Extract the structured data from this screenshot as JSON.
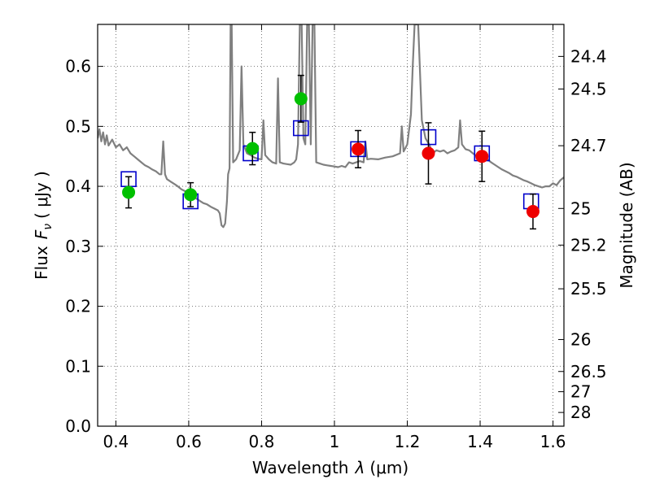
{
  "chart_data": {
    "type": "scatter",
    "xlabel_text": "Wavelength",
    "xlabel_symbol": "λ",
    "xlabel_unit": "(μm)",
    "ylabel_text": "Flux",
    "ylabel_symbol": "F",
    "ylabel_subscript": "ν",
    "ylabel_unit": "( μJy )",
    "y2label": "Magnitude (AB)",
    "xlim": [
      0.35,
      1.63
    ],
    "ylim": [
      0.0,
      0.67
    ],
    "grid": true,
    "x_ticks": [
      0.4,
      0.6,
      0.8,
      1.0,
      1.2,
      1.4,
      1.6
    ],
    "x_tick_labels": [
      "0.4",
      "0.6",
      "0.8",
      "1",
      "1.2",
      "1.4",
      "1.6"
    ],
    "y_ticks": [
      0.0,
      0.1,
      0.2,
      0.3,
      0.4,
      0.5,
      0.6
    ],
    "y_tick_labels": [
      "0.0",
      "0.1",
      "0.2",
      "0.3",
      "0.4",
      "0.5",
      "0.6"
    ],
    "mag_ticks": [
      {
        "label": "24.4",
        "flux": 0.6166
      },
      {
        "label": "24.5",
        "flux": 0.5623
      },
      {
        "label": "24.7",
        "flux": 0.4677
      },
      {
        "label": "25",
        "flux": 0.3631
      },
      {
        "label": "25.2",
        "flux": 0.302
      },
      {
        "label": "25.5",
        "flux": 0.2291
      },
      {
        "label": "26",
        "flux": 0.1445
      },
      {
        "label": "26.5",
        "flux": 0.0912
      },
      {
        "label": "27",
        "flux": 0.0575
      },
      {
        "label": "28",
        "flux": 0.0229
      }
    ],
    "series": [
      {
        "marker": "open-square",
        "color": "#0000cc",
        "points": [
          {
            "x": 0.435,
            "y": 0.412
          },
          {
            "x": 0.605,
            "y": 0.375
          },
          {
            "x": 0.77,
            "y": 0.455
          },
          {
            "x": 0.908,
            "y": 0.497
          },
          {
            "x": 1.065,
            "y": 0.462
          },
          {
            "x": 1.258,
            "y": 0.482
          },
          {
            "x": 1.405,
            "y": 0.455
          },
          {
            "x": 1.54,
            "y": 0.375
          }
        ]
      },
      {
        "marker": "filled-circle",
        "color": "#00c000",
        "points": [
          {
            "x": 0.435,
            "y": 0.39,
            "err": 0.026
          },
          {
            "x": 0.605,
            "y": 0.386,
            "err": 0.02
          },
          {
            "x": 0.775,
            "y": 0.463,
            "err": 0.027
          },
          {
            "x": 0.908,
            "y": 0.546,
            "err": 0.039
          }
        ]
      },
      {
        "marker": "filled-circle",
        "color": "#ee0000",
        "points": [
          {
            "x": 1.065,
            "y": 0.462,
            "err": 0.031
          },
          {
            "x": 1.258,
            "y": 0.455,
            "err": 0.051
          },
          {
            "x": 1.405,
            "y": 0.45,
            "err": 0.042
          },
          {
            "x": 1.545,
            "y": 0.358,
            "err": 0.029
          }
        ]
      }
    ],
    "model_spectrum": {
      "color": "#808080",
      "points": [
        [
          0.35,
          0.48
        ],
        [
          0.355,
          0.495
        ],
        [
          0.36,
          0.475
        ],
        [
          0.365,
          0.49
        ],
        [
          0.37,
          0.47
        ],
        [
          0.375,
          0.485
        ],
        [
          0.38,
          0.468
        ],
        [
          0.39,
          0.478
        ],
        [
          0.4,
          0.465
        ],
        [
          0.41,
          0.47
        ],
        [
          0.42,
          0.46
        ],
        [
          0.43,
          0.465
        ],
        [
          0.44,
          0.455
        ],
        [
          0.45,
          0.45
        ],
        [
          0.46,
          0.445
        ],
        [
          0.47,
          0.44
        ],
        [
          0.48,
          0.435
        ],
        [
          0.49,
          0.432
        ],
        [
          0.5,
          0.428
        ],
        [
          0.51,
          0.425
        ],
        [
          0.52,
          0.42
        ],
        [
          0.525,
          0.42
        ],
        [
          0.53,
          0.475
        ],
        [
          0.535,
          0.42
        ],
        [
          0.54,
          0.412
        ],
        [
          0.55,
          0.408
        ],
        [
          0.56,
          0.404
        ],
        [
          0.57,
          0.4
        ],
        [
          0.58,
          0.395
        ],
        [
          0.59,
          0.392
        ],
        [
          0.6,
          0.388
        ],
        [
          0.61,
          0.385
        ],
        [
          0.62,
          0.38
        ],
        [
          0.63,
          0.376
        ],
        [
          0.64,
          0.372
        ],
        [
          0.65,
          0.37
        ],
        [
          0.66,
          0.366
        ],
        [
          0.67,
          0.363
        ],
        [
          0.68,
          0.36
        ],
        [
          0.685,
          0.355
        ],
        [
          0.69,
          0.335
        ],
        [
          0.695,
          0.332
        ],
        [
          0.7,
          0.338
        ],
        [
          0.705,
          0.375
        ],
        [
          0.708,
          0.42
        ],
        [
          0.712,
          0.43
        ],
        [
          0.715,
          0.67
        ],
        [
          0.718,
          0.67
        ],
        [
          0.722,
          0.44
        ],
        [
          0.73,
          0.445
        ],
        [
          0.74,
          0.46
        ],
        [
          0.745,
          0.6
        ],
        [
          0.75,
          0.47
        ],
        [
          0.76,
          0.455
        ],
        [
          0.77,
          0.452
        ],
        [
          0.78,
          0.448
        ],
        [
          0.79,
          0.446
        ],
        [
          0.8,
          0.445
        ],
        [
          0.805,
          0.51
        ],
        [
          0.81,
          0.452
        ],
        [
          0.82,
          0.445
        ],
        [
          0.83,
          0.44
        ],
        [
          0.84,
          0.438
        ],
        [
          0.845,
          0.58
        ],
        [
          0.85,
          0.44
        ],
        [
          0.86,
          0.438
        ],
        [
          0.87,
          0.437
        ],
        [
          0.88,
          0.436
        ],
        [
          0.89,
          0.44
        ],
        [
          0.895,
          0.445
        ],
        [
          0.9,
          0.47
        ],
        [
          0.905,
          0.67
        ],
        [
          0.91,
          0.67
        ],
        [
          0.915,
          0.48
        ],
        [
          0.92,
          0.47
        ],
        [
          0.925,
          0.67
        ],
        [
          0.93,
          0.67
        ],
        [
          0.935,
          0.47
        ],
        [
          0.94,
          0.67
        ],
        [
          0.945,
          0.67
        ],
        [
          0.95,
          0.44
        ],
        [
          0.96,
          0.438
        ],
        [
          0.97,
          0.436
        ],
        [
          0.98,
          0.435
        ],
        [
          0.99,
          0.434
        ],
        [
          1.0,
          0.433
        ],
        [
          1.01,
          0.432
        ],
        [
          1.02,
          0.434
        ],
        [
          1.03,
          0.432
        ],
        [
          1.04,
          0.44
        ],
        [
          1.05,
          0.438
        ],
        [
          1.06,
          0.44
        ],
        [
          1.07,
          0.442
        ],
        [
          1.08,
          0.44
        ],
        [
          1.085,
          0.475
        ],
        [
          1.09,
          0.445
        ],
        [
          1.1,
          0.446
        ],
        [
          1.12,
          0.445
        ],
        [
          1.14,
          0.448
        ],
        [
          1.16,
          0.45
        ],
        [
          1.18,
          0.455
        ],
        [
          1.185,
          0.5
        ],
        [
          1.19,
          0.458
        ],
        [
          1.2,
          0.47
        ],
        [
          1.21,
          0.52
        ],
        [
          1.215,
          0.6
        ],
        [
          1.22,
          0.67
        ],
        [
          1.23,
          0.67
        ],
        [
          1.24,
          0.51
        ],
        [
          1.25,
          0.48
        ],
        [
          1.26,
          0.47
        ],
        [
          1.27,
          0.455
        ],
        [
          1.28,
          0.46
        ],
        [
          1.29,
          0.458
        ],
        [
          1.3,
          0.46
        ],
        [
          1.31,
          0.455
        ],
        [
          1.32,
          0.458
        ],
        [
          1.33,
          0.46
        ],
        [
          1.34,
          0.465
        ],
        [
          1.345,
          0.51
        ],
        [
          1.35,
          0.47
        ],
        [
          1.36,
          0.462
        ],
        [
          1.37,
          0.46
        ],
        [
          1.38,
          0.455
        ],
        [
          1.39,
          0.45
        ],
        [
          1.4,
          0.448
        ],
        [
          1.41,
          0.448
        ],
        [
          1.42,
          0.445
        ],
        [
          1.43,
          0.44
        ],
        [
          1.44,
          0.436
        ],
        [
          1.45,
          0.432
        ],
        [
          1.46,
          0.428
        ],
        [
          1.47,
          0.425
        ],
        [
          1.48,
          0.422
        ],
        [
          1.49,
          0.418
        ],
        [
          1.5,
          0.416
        ],
        [
          1.51,
          0.413
        ],
        [
          1.52,
          0.41
        ],
        [
          1.53,
          0.408
        ],
        [
          1.54,
          0.405
        ],
        [
          1.55,
          0.402
        ],
        [
          1.56,
          0.4
        ],
        [
          1.57,
          0.398
        ],
        [
          1.58,
          0.4
        ],
        [
          1.59,
          0.4
        ],
        [
          1.6,
          0.405
        ],
        [
          1.61,
          0.402
        ],
        [
          1.62,
          0.41
        ],
        [
          1.63,
          0.415
        ]
      ]
    }
  }
}
